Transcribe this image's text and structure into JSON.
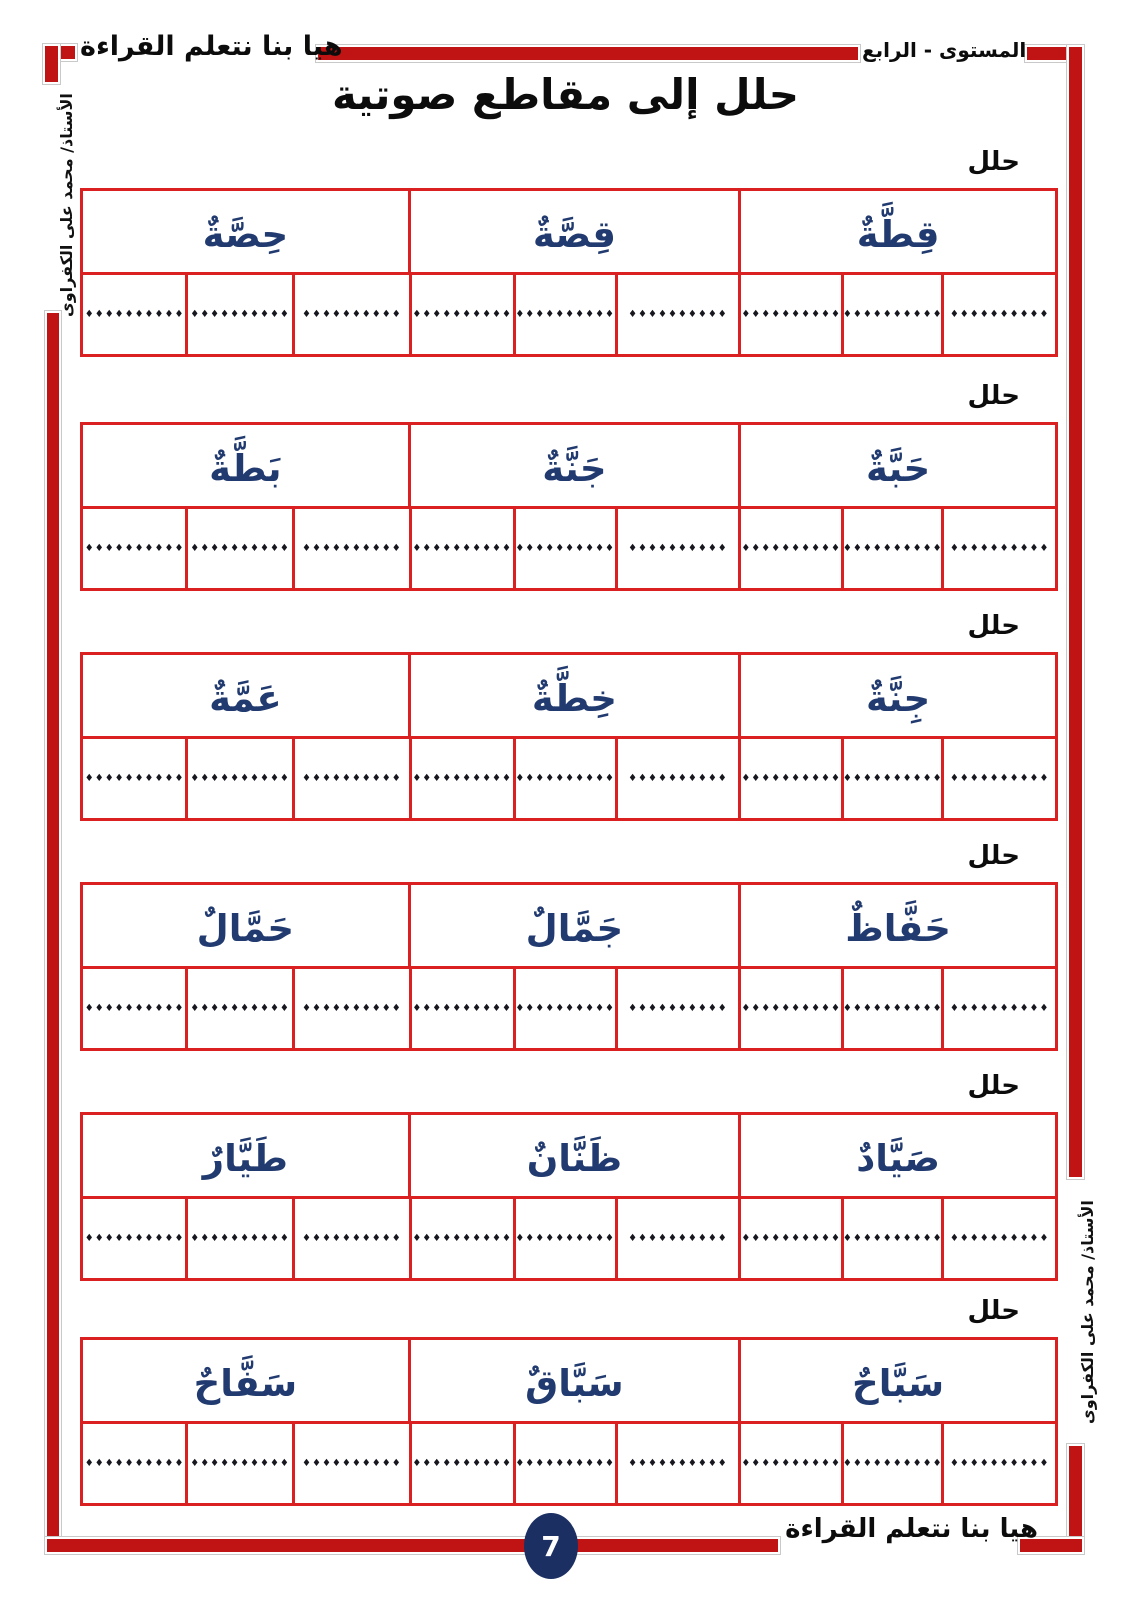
{
  "header": {
    "brand": "هيا بنا نتعلم القراءة",
    "level": "المستوى  -  الرابع"
  },
  "title": "حلل إلى مقاطع صوتية",
  "teacher": "الأستاذ/  محمد على الكفراوى",
  "dots": "♦♦♦♦♦♦♦♦♦♦",
  "sections": [
    {
      "label": "حلل",
      "words": [
        "قِطَّةٌ",
        "قِصَّةٌ",
        "حِصَّةٌ"
      ]
    },
    {
      "label": "حلل",
      "words": [
        "حَبَّةٌ",
        "جَنَّةٌ",
        "بَطَّةٌ"
      ]
    },
    {
      "label": "حلل",
      "words": [
        "جِنَّةٌ",
        "خِطَّةٌ",
        "عَمَّةٌ"
      ]
    },
    {
      "label": "حلل",
      "words": [
        "حَفَّاظٌ",
        "جَمَّالٌ",
        "حَمَّالٌ"
      ]
    },
    {
      "label": "حلل",
      "words": [
        "صَيَّادٌ",
        "ظَنَّانٌ",
        "طَيَّارٌ"
      ]
    },
    {
      "label": "حلل",
      "words": [
        "سَبَّاحٌ",
        "سَبَّاقٌ",
        "سَفَّاحٌ"
      ]
    }
  ],
  "footer": {
    "brand": "هيا بنا نتعلم القراءة",
    "page_number": "7"
  },
  "colors": {
    "frame_red": "#c01313",
    "table_red": "#da2020",
    "word_navy": "#213a6f",
    "badge_navy": "#1c2f63"
  }
}
